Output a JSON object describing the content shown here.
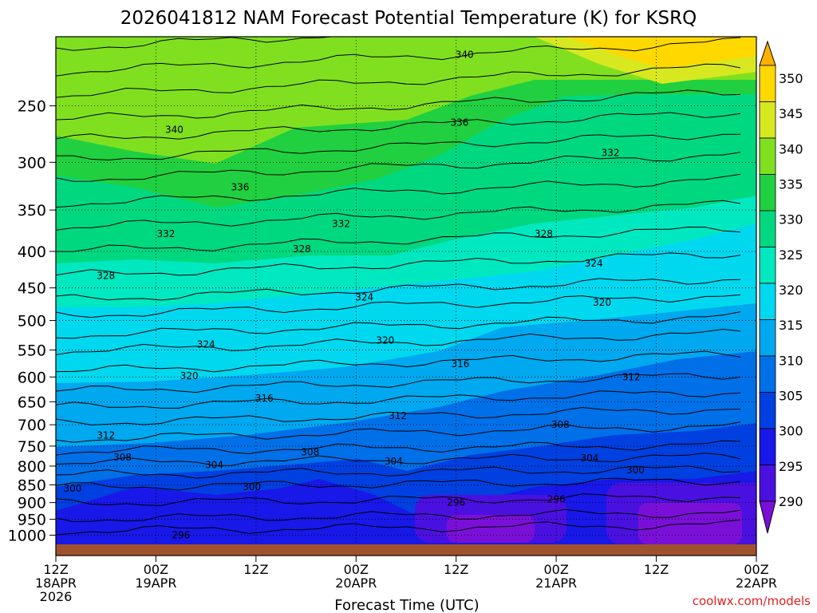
{
  "chart_data": {
    "type": "heatmap",
    "title": "2026041812 NAM Forecast Potential Temperature (K) for KSRQ",
    "xlabel": "Forecast Time (UTC)",
    "ylabel": "",
    "credit": "coolwx.com/models",
    "x_ticks": [
      {
        "hours": 0,
        "lines": [
          "12Z",
          "18APR",
          "2026"
        ]
      },
      {
        "hours": 12,
        "lines": [
          "00Z",
          "19APR"
        ]
      },
      {
        "hours": 24,
        "lines": [
          "12Z"
        ]
      },
      {
        "hours": 36,
        "lines": [
          "00Z",
          "20APR"
        ]
      },
      {
        "hours": 48,
        "lines": [
          "12Z"
        ]
      },
      {
        "hours": 60,
        "lines": [
          "00Z",
          "21APR"
        ]
      },
      {
        "hours": 72,
        "lines": [
          "12Z"
        ]
      },
      {
        "hours": 84,
        "lines": [
          "00Z",
          "22APR"
        ]
      }
    ],
    "y_ticks": [
      "250",
      "300",
      "350",
      "400",
      "450",
      "500",
      "550",
      "600",
      "650",
      "700",
      "750",
      "800",
      "850",
      "900",
      "950",
      "1000"
    ],
    "y_scale": "log",
    "y_range_hpa": [
      200,
      1030
    ],
    "grid": "dotted",
    "colorbar": {
      "labels": [
        "290",
        "295",
        "300",
        "305",
        "310",
        "315",
        "320",
        "325",
        "330",
        "335",
        "340",
        "345",
        "350"
      ],
      "colors": [
        "#7a10d8",
        "#4a10e0",
        "#1818e8",
        "#0040e0",
        "#0070e8",
        "#00a8f0",
        "#00d8f0",
        "#00e8c0",
        "#00d880",
        "#20d040",
        "#80e020",
        "#d8e820",
        "#ffd800",
        "#ffb000"
      ]
    },
    "contour_labels": [
      {
        "text": "340",
        "hour": 14.2,
        "hpa": 270
      },
      {
        "text": "340",
        "hour": 49.0,
        "hpa": 212
      },
      {
        "text": "336",
        "hour": 22.1,
        "hpa": 325
      },
      {
        "text": "336",
        "hour": 48.4,
        "hpa": 264
      },
      {
        "text": "332",
        "hour": 13.2,
        "hpa": 378
      },
      {
        "text": "332",
        "hour": 34.2,
        "hpa": 366
      },
      {
        "text": "332",
        "hour": 66.5,
        "hpa": 291
      },
      {
        "text": "328",
        "hour": 6.0,
        "hpa": 433
      },
      {
        "text": "328",
        "hour": 29.5,
        "hpa": 397
      },
      {
        "text": "328",
        "hour": 58.5,
        "hpa": 378
      },
      {
        "text": "324",
        "hour": 18.0,
        "hpa": 540
      },
      {
        "text": "324",
        "hour": 37.0,
        "hpa": 464
      },
      {
        "text": "324",
        "hour": 64.5,
        "hpa": 416
      },
      {
        "text": "320",
        "hour": 16.0,
        "hpa": 598
      },
      {
        "text": "320",
        "hour": 39.5,
        "hpa": 533
      },
      {
        "text": "320",
        "hour": 65.5,
        "hpa": 472
      },
      {
        "text": "316",
        "hour": 25.0,
        "hpa": 643
      },
      {
        "text": "316",
        "hour": 48.5,
        "hpa": 575
      },
      {
        "text": "312",
        "hour": 6.0,
        "hpa": 725
      },
      {
        "text": "312",
        "hour": 41.0,
        "hpa": 680
      },
      {
        "text": "312",
        "hour": 69.0,
        "hpa": 600
      },
      {
        "text": "308",
        "hour": 8.0,
        "hpa": 778
      },
      {
        "text": "308",
        "hour": 30.5,
        "hpa": 765
      },
      {
        "text": "308",
        "hour": 60.5,
        "hpa": 700
      },
      {
        "text": "304",
        "hour": 19.0,
        "hpa": 797
      },
      {
        "text": "304",
        "hour": 40.5,
        "hpa": 788
      },
      {
        "text": "304",
        "hour": 64.0,
        "hpa": 780
      },
      {
        "text": "300",
        "hour": 2.0,
        "hpa": 860
      },
      {
        "text": "300",
        "hour": 23.5,
        "hpa": 856
      },
      {
        "text": "300",
        "hour": 69.5,
        "hpa": 810
      },
      {
        "text": "296",
        "hour": 15.0,
        "hpa": 1000
      },
      {
        "text": "296",
        "hour": 48.0,
        "hpa": 900
      },
      {
        "text": "296",
        "hour": 60.0,
        "hpa": 890
      }
    ]
  }
}
